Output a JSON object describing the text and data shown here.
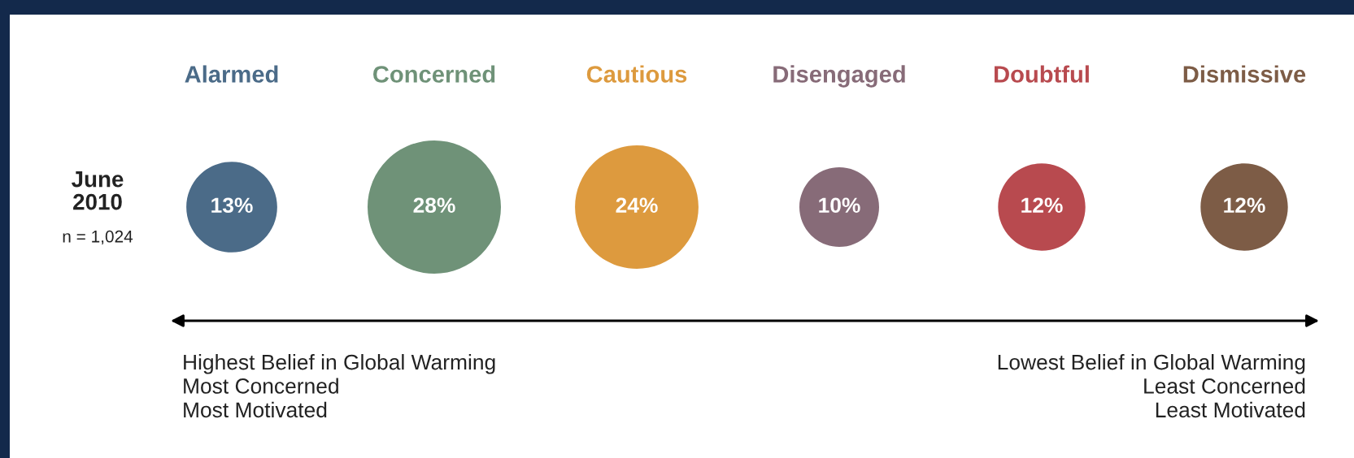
{
  "chart_data": {
    "type": "other",
    "categories": [
      "Alarmed",
      "Concerned",
      "Cautious",
      "Disengaged",
      "Doubtful",
      "Dismissive"
    ],
    "values": [
      13,
      28,
      24,
      10,
      12,
      12
    ],
    "value_labels": [
      "13%",
      "28%",
      "24%",
      "10%",
      "12%",
      "12%"
    ],
    "colors": [
      "#4b6b88",
      "#6f9278",
      "#dd9a3e",
      "#876b78",
      "#b84a4f",
      "#7d5c46"
    ],
    "annotations": [
      "June\n2010",
      "n = 1,024",
      "Highest Belief in Global Warming\nMost Concerned\nMost Motivated",
      "Lowest Belief in Global Warming\nLeast Concerned\nLeast Motivated"
    ]
  }
}
